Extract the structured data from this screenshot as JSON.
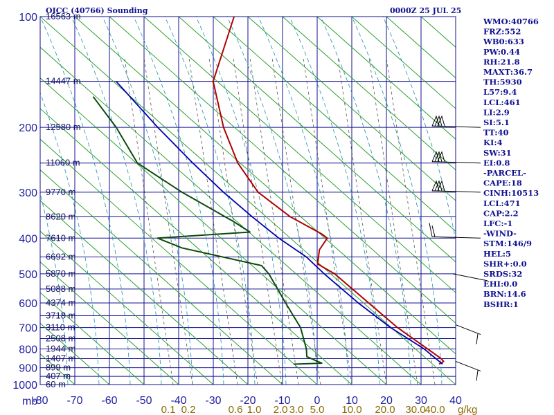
{
  "header": {
    "station": "OICC (40766) Sounding",
    "time": "0000Z 25 JUL 25"
  },
  "stats": [
    "WMO:40766",
    "FRZ:552",
    "WB0:633",
    "PW:0.44",
    "RH:21.8",
    "MAXT:36.7",
    "TH:5930",
    "L57:9.4",
    "LCL:461",
    "LI:2.9",
    "SI:5.1",
    "TT:40",
    "KI:4",
    "SW:31",
    "EI:0.8",
    "-PARCEL-",
    "CAPE:18",
    "CINH:10513",
    "LCL:471",
    "CAP:2.2",
    "LFC:-1",
    "-WIND-",
    "STM:146/9",
    "HEL:5",
    "SHR+:0.0",
    "SRDS:32",
    "EHI:0.0",
    "BRN:14.6",
    "BSHR:1"
  ],
  "colors": {
    "frame": "#101090",
    "temperature": "#b00000",
    "dewpoint": "#0b4a0b",
    "parcel": "#0000b0",
    "dry_adiabat": "#2ca02c",
    "moist_adiabat": "#1a8fb0",
    "mixing_ratio": "#555555",
    "isotherm": "#101090"
  },
  "chart_data": {
    "type": "skew-t",
    "pressure_unit_label": "mb",
    "pressure_ticks": [
      100,
      200,
      300,
      400,
      500,
      600,
      700,
      800,
      900,
      1000
    ],
    "pressure_labels": [
      "100",
      "200",
      "300",
      "400",
      "500",
      "600",
      "700",
      "800",
      "900",
      "1000"
    ],
    "temperature_ticks": [
      -80,
      -70,
      -60,
      -50,
      -40,
      -30,
      -20,
      -10,
      0,
      10,
      20,
      30,
      40
    ],
    "temperature_labels": [
      "-80",
      "-70",
      "-60",
      "-50",
      "-40",
      "-30",
      "-20",
      "-10",
      "0",
      "10",
      "20",
      "30",
      "40"
    ],
    "height_labels": [
      {
        "p": 100,
        "label": "16563 m"
      },
      {
        "p": 150,
        "label": "14447 m"
      },
      {
        "p": 200,
        "label": "12580 m"
      },
      {
        "p": 250,
        "label": "11060 m"
      },
      {
        "p": 300,
        "label": "9770 m"
      },
      {
        "p": 350,
        "label": "8620 m"
      },
      {
        "p": 400,
        "label": "7610 m"
      },
      {
        "p": 450,
        "label": "6692 m"
      },
      {
        "p": 500,
        "label": "5870 m"
      },
      {
        "p": 550,
        "label": "5088 m"
      },
      {
        "p": 600,
        "label": "4374 m"
      },
      {
        "p": 650,
        "label": "3718 m"
      },
      {
        "p": 700,
        "label": "3110 m"
      },
      {
        "p": 750,
        "label": "2508 m"
      },
      {
        "p": 800,
        "label": "1944 m"
      },
      {
        "p": 850,
        "label": "1407 m"
      },
      {
        "p": 900,
        "label": "899 m"
      },
      {
        "p": 950,
        "label": "407 m"
      },
      {
        "p": 1000,
        "label": "60 m"
      }
    ],
    "mixing_ratio_labels": [
      "0.1",
      "0.2",
      "0.6",
      "1.0",
      "2.0",
      "3.0",
      "5.0",
      "10.0",
      "20.0",
      "30.0",
      "40.0"
    ],
    "mixing_ratio_unit": "g/kg",
    "series": [
      {
        "key": "temperature",
        "points": [
          [
            100,
            -64
          ],
          [
            150,
            -63
          ],
          [
            200,
            -55
          ],
          [
            250,
            -47
          ],
          [
            300,
            -38
          ],
          [
            350,
            -26
          ],
          [
            390,
            -15
          ],
          [
            400,
            -13
          ],
          [
            430,
            -14
          ],
          [
            470,
            -13
          ],
          [
            500,
            -7
          ],
          [
            600,
            6
          ],
          [
            700,
            17
          ],
          [
            800,
            28
          ],
          [
            850,
            33
          ],
          [
            865,
            34
          ],
          [
            880,
            33
          ]
        ]
      },
      {
        "key": "dewpoint",
        "points": [
          [
            165,
            -96
          ],
          [
            200,
            -86
          ],
          [
            250,
            -76
          ],
          [
            300,
            -60
          ],
          [
            360,
            -42
          ],
          [
            385,
            -36
          ],
          [
            400,
            -62
          ],
          [
            425,
            -54
          ],
          [
            475,
            -29
          ],
          [
            500,
            -26
          ],
          [
            600,
            -18
          ],
          [
            700,
            -11
          ],
          [
            800,
            -7
          ],
          [
            840,
            -6
          ],
          [
            875,
            -1
          ],
          [
            880,
            -9
          ]
        ]
      },
      {
        "key": "parcel",
        "points": [
          [
            880,
            34
          ],
          [
            800,
            27
          ],
          [
            700,
            15
          ],
          [
            600,
            3
          ],
          [
            500,
            -10
          ],
          [
            450,
            -17
          ],
          [
            400,
            -27
          ],
          [
            350,
            -37
          ],
          [
            300,
            -48
          ],
          [
            250,
            -60
          ],
          [
            200,
            -74
          ],
          [
            150,
            -91
          ]
        ]
      }
    ],
    "winds": [
      {
        "p": 200,
        "style": "flags3"
      },
      {
        "p": 250,
        "style": "flags3"
      },
      {
        "p": 300,
        "style": "flags3"
      },
      {
        "p": 400,
        "style": "barb2"
      },
      {
        "p": 500,
        "style": "line"
      },
      {
        "p": 700,
        "style": "barb1"
      },
      {
        "p": 880,
        "style": "barb1"
      }
    ]
  }
}
